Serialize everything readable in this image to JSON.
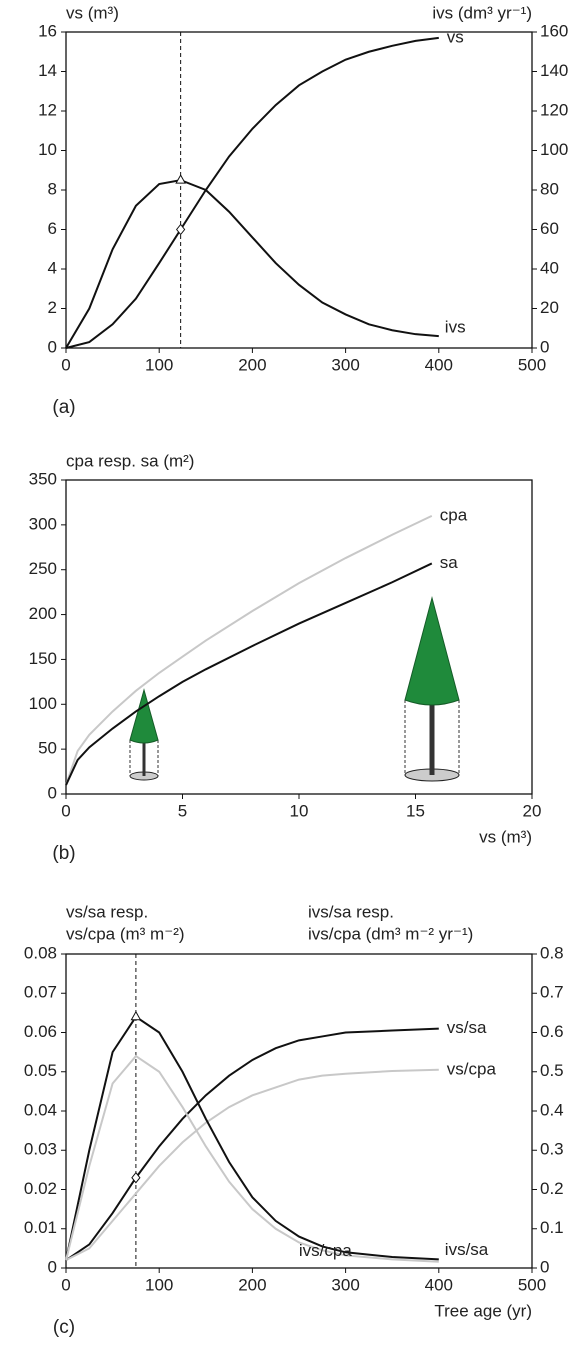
{
  "chart_data": [
    {
      "type": "line",
      "panel_label": "(a)",
      "y_label": "vs (m³)",
      "y2_label": "ivs (dm³ yr⁻¹)",
      "x": [
        0,
        25,
        50,
        75,
        100,
        123,
        150,
        175,
        200,
        225,
        250,
        275,
        300,
        325,
        350,
        375,
        400
      ],
      "series": [
        {
          "name": "vs",
          "color": "#111111",
          "values": [
            0,
            0.3,
            1.2,
            2.5,
            4.3,
            6.0,
            8.0,
            9.7,
            11.1,
            12.3,
            13.3,
            14.0,
            14.6,
            15.0,
            15.3,
            15.55,
            15.7
          ]
        },
        {
          "name": "ivs",
          "color": "#111111",
          "axis": "y2",
          "values": [
            0,
            20,
            50,
            72,
            83,
            85,
            80,
            69,
            56,
            43,
            32,
            23,
            17,
            12,
            9,
            7,
            6
          ]
        }
      ],
      "vline": 123,
      "markers": [
        {
          "shape": "triangle",
          "x": 123,
          "y": 85,
          "axis": "y2"
        },
        {
          "shape": "diamond",
          "x": 123,
          "y": 6.0
        }
      ],
      "xlim": [
        0,
        500
      ],
      "xticks": [
        0,
        100,
        200,
        300,
        400,
        500
      ],
      "ylim": [
        0,
        16
      ],
      "yticks": [
        0,
        2,
        4,
        6,
        8,
        10,
        12,
        14,
        16
      ],
      "y2lim": [
        0,
        160
      ],
      "y2ticks": [
        0,
        20,
        40,
        60,
        80,
        100,
        120,
        140,
        160
      ]
    },
    {
      "type": "line",
      "panel_label": "(b)",
      "y_label": "cpa resp. sa (m²)",
      "x_label": "vs (m³)",
      "x": [
        0,
        0.5,
        1,
        2,
        3,
        4,
        5,
        6,
        8,
        10,
        12,
        14,
        15.7
      ],
      "series": [
        {
          "name": "cpa",
          "color": "#c8c8c8",
          "values": [
            10,
            48,
            66,
            92,
            115,
            135,
            153,
            171,
            204,
            235,
            263,
            289,
            310
          ]
        },
        {
          "name": "sa",
          "color": "#111111",
          "values": [
            10,
            38,
            52,
            73,
            92,
            109,
            125,
            139,
            165,
            190,
            213,
            236,
            257
          ]
        }
      ],
      "xlim": [
        0,
        20
      ],
      "xticks": [
        0,
        5,
        10,
        15,
        20
      ],
      "ylim": [
        0,
        350
      ],
      "yticks": [
        0,
        50,
        100,
        150,
        200,
        250,
        300,
        350
      ]
    },
    {
      "type": "line",
      "panel_label": "(c)",
      "y_label": [
        "vs/sa resp.",
        "vs/cpa (m³ m⁻²)"
      ],
      "y2_label": [
        "ivs/sa resp.",
        "ivs/cpa (dm³ m⁻² yr⁻¹)"
      ],
      "x_label": "Tree age (yr)",
      "x": [
        0,
        25,
        50,
        75,
        100,
        125,
        150,
        175,
        200,
        225,
        250,
        275,
        300,
        350,
        400
      ],
      "series": [
        {
          "name": "vs/sa",
          "color": "#111111",
          "values": [
            0.002,
            0.006,
            0.014,
            0.023,
            0.031,
            0.038,
            0.044,
            0.049,
            0.053,
            0.056,
            0.058,
            0.059,
            0.06,
            0.0605,
            0.061
          ]
        },
        {
          "name": "vs/cpa",
          "color": "#c8c8c8",
          "values": [
            0.002,
            0.005,
            0.012,
            0.019,
            0.026,
            0.032,
            0.037,
            0.041,
            0.044,
            0.046,
            0.048,
            0.049,
            0.0495,
            0.0502,
            0.0505
          ]
        },
        {
          "name": "ivs/sa",
          "color": "#111111",
          "axis": "y2",
          "values": [
            0.02,
            0.3,
            0.55,
            0.64,
            0.6,
            0.5,
            0.38,
            0.27,
            0.18,
            0.12,
            0.08,
            0.055,
            0.04,
            0.028,
            0.022
          ]
        },
        {
          "name": "ivs/cpa",
          "color": "#c8c8c8",
          "axis": "y2",
          "values": [
            0.02,
            0.26,
            0.47,
            0.54,
            0.5,
            0.41,
            0.31,
            0.22,
            0.15,
            0.1,
            0.065,
            0.045,
            0.032,
            0.022,
            0.016
          ]
        }
      ],
      "vline": 75,
      "markers": [
        {
          "shape": "triangle",
          "x": 75,
          "y": 0.64,
          "axis": "y2"
        },
        {
          "shape": "diamond",
          "x": 75,
          "y": 0.023
        }
      ],
      "xlim": [
        0,
        500
      ],
      "xticks": [
        0,
        100,
        200,
        300,
        400,
        500
      ],
      "ylim": [
        0,
        0.08
      ],
      "yticks": [
        0,
        0.01,
        0.02,
        0.03,
        0.04,
        0.05,
        0.06,
        0.07,
        0.08
      ],
      "y2lim": [
        0,
        0.8
      ],
      "y2ticks": [
        0,
        0.1,
        0.2,
        0.3,
        0.4,
        0.5,
        0.6,
        0.7,
        0.8
      ]
    }
  ]
}
